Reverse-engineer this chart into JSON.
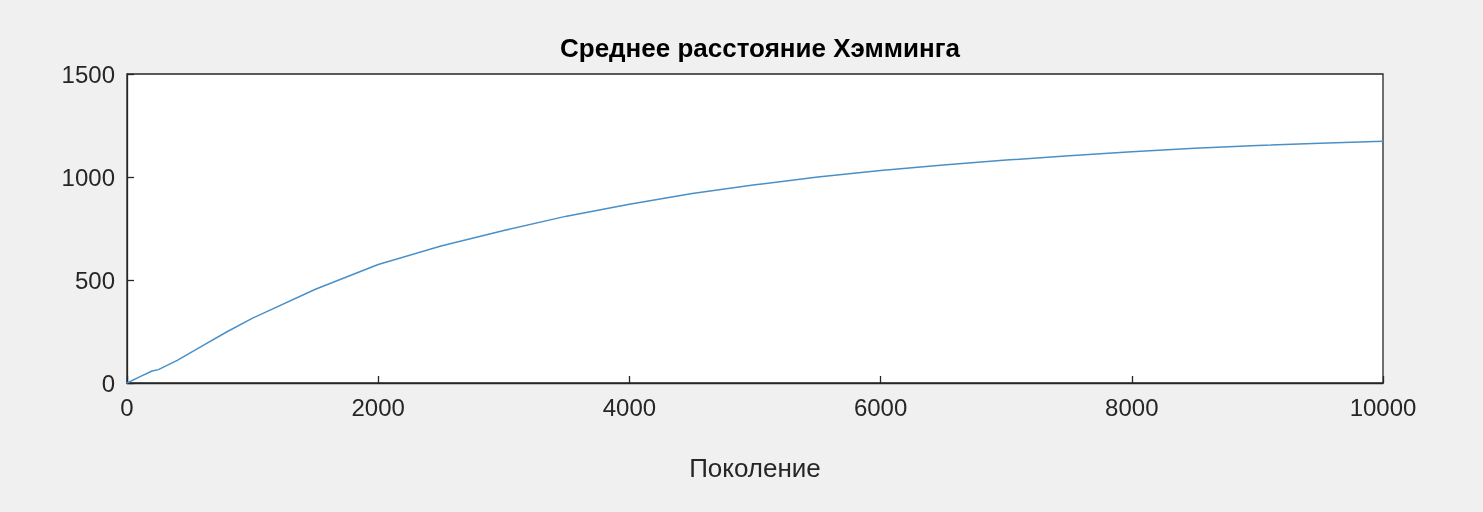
{
  "chart_data": {
    "type": "line",
    "title": "Среднее расстояние Хэмминга",
    "xlabel": "Поколение",
    "x": [
      0,
      100,
      200,
      250,
      400,
      600,
      800,
      1000,
      1500,
      2000,
      2500,
      3000,
      3500,
      4000,
      4500,
      5000,
      5500,
      6000,
      6500,
      7000,
      7500,
      8000,
      8500,
      9000,
      9500,
      10000
    ],
    "series": [
      {
        "color": "#4a90c8",
        "values": [
          0,
          30,
          58,
          65,
          110,
          180,
          250,
          315,
          455,
          575,
          665,
          740,
          810,
          868,
          920,
          962,
          1000,
          1031,
          1058,
          1082,
          1103,
          1122,
          1140,
          1153,
          1164,
          1174
        ]
      }
    ],
    "xlim": [
      0,
      10000
    ],
    "xticks": [
      0,
      2000,
      4000,
      6000,
      8000,
      10000
    ],
    "ylim": [
      0,
      1500
    ],
    "yticks": [
      0,
      500,
      1000,
      1500
    ],
    "grid": false,
    "marker": "none",
    "line_style": "solid"
  }
}
